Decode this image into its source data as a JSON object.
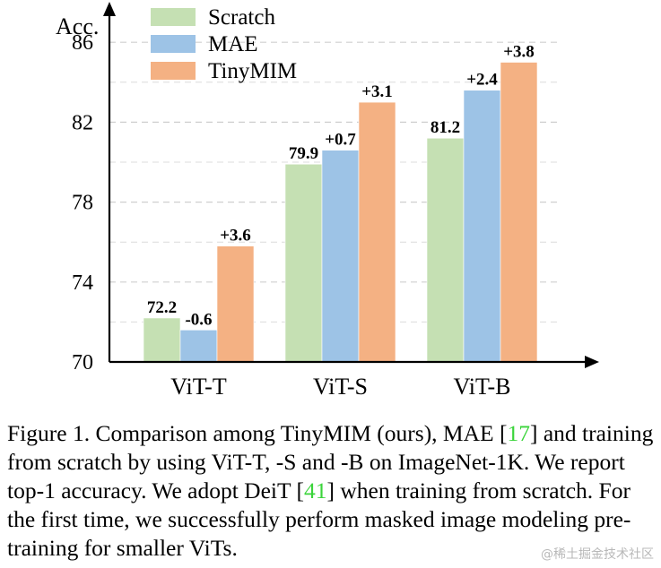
{
  "chart_data": {
    "type": "bar",
    "ylabel": "Acc.",
    "ylim": [
      70,
      87
    ],
    "yticks": [
      70,
      74,
      78,
      82,
      86
    ],
    "grid": "dashed-horizontal",
    "legend_position": "top-left",
    "categories": [
      "ViT-T",
      "ViT-S",
      "ViT-B"
    ],
    "series": [
      {
        "name": "Scratch",
        "color": "#c5e0b3",
        "values": [
          72.2,
          79.9,
          81.2
        ],
        "labels": [
          "72.2",
          "79.9",
          "81.2"
        ]
      },
      {
        "name": "MAE",
        "color": "#9dc3e6",
        "values": [
          71.6,
          80.6,
          83.6
        ],
        "labels": [
          "-0.6",
          "+0.7",
          "+2.4"
        ]
      },
      {
        "name": "TinyMIM",
        "color": "#f4b183",
        "values": [
          75.8,
          83.0,
          85.0
        ],
        "labels": [
          "+3.6",
          "+3.1",
          "+3.8"
        ]
      }
    ]
  },
  "caption": {
    "part1": "Figure 1.  Comparison among TinyMIM (ours), MAE [",
    "ref1": "17",
    "part2": "] and training from scratch by using ViT-T, -S and -B on ImageNet-1K. We report top-1 accuracy. We adopt DeiT [",
    "ref2": "41",
    "part3": "] when training from scratch. For the first time, we successfully perform masked image modeling pre-training for smaller ViTs."
  },
  "watermark": "@稀土掘金技术社区"
}
